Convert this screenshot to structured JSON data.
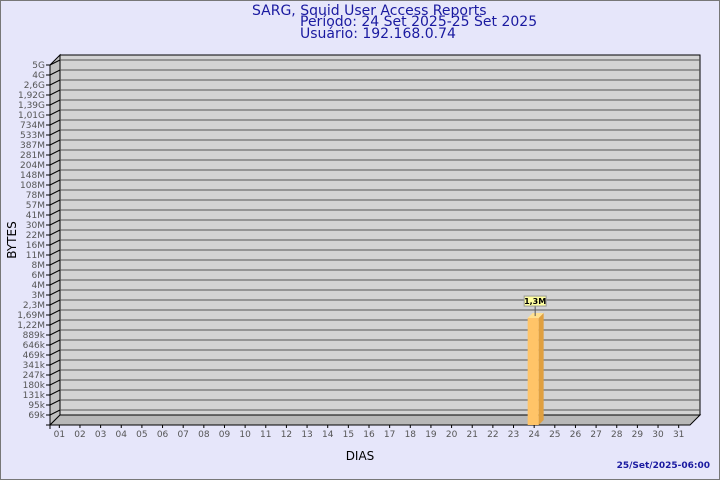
{
  "header": {
    "title": "SARG, Squid User Access Reports",
    "period": "Período: 24 Set 2025-25 Set 2025",
    "user": "Usuário: 192.168.0.74"
  },
  "footer": {
    "timestamp": "25/Set/2025-06:00"
  },
  "colors": {
    "background": "#e6e6fa",
    "plot": "#d3d3d3",
    "bar": "#ffc468",
    "title": "#1a1aa0"
  },
  "chart_data": {
    "type": "bar",
    "xlabel": "DIAS",
    "ylabel": "BYTES",
    "yscale": "log",
    "grid": true,
    "yticks": [
      "5G",
      "4G",
      "2,6G",
      "1,92G",
      "1,39G",
      "1,01G",
      "734M",
      "533M",
      "387M",
      "281M",
      "204M",
      "148M",
      "108M",
      "78M",
      "57M",
      "41M",
      "30M",
      "22M",
      "16M",
      "11M",
      "8M",
      "6M",
      "4M",
      "3M",
      "2,3M",
      "1,69M",
      "1,22M",
      "889k",
      "646k",
      "469k",
      "341k",
      "247k",
      "180k",
      "131k",
      "95k",
      "69k"
    ],
    "categories": [
      "01",
      "02",
      "03",
      "04",
      "05",
      "06",
      "07",
      "08",
      "09",
      "10",
      "11",
      "12",
      "13",
      "14",
      "15",
      "16",
      "17",
      "18",
      "19",
      "20",
      "21",
      "22",
      "23",
      "24",
      "25",
      "26",
      "27",
      "28",
      "29",
      "30",
      "31"
    ],
    "bars": [
      {
        "category": "24",
        "value": 1300000,
        "label": "1,3M"
      }
    ]
  }
}
